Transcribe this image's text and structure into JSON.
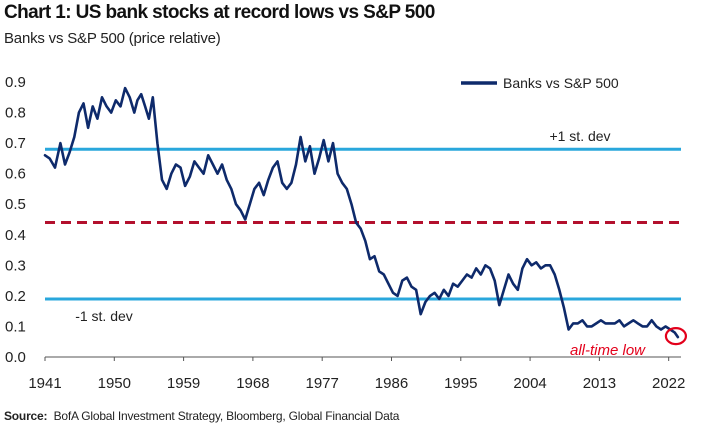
{
  "chart_data": {
    "type": "line",
    "title": "Chart 1: US bank stocks at record lows vs S&P 500",
    "subtitle": "Banks vs S&P 500 (price relative)",
    "xlabel": "",
    "ylabel": "",
    "xlim": [
      1941,
      2023.6
    ],
    "ylim": [
      0.0,
      0.9
    ],
    "x_ticks": [
      "1941",
      "1950",
      "1959",
      "1968",
      "1977",
      "1986",
      "1995",
      "2004",
      "2013",
      "2022"
    ],
    "y_ticks": [
      "0.0",
      "0.1",
      "0.2",
      "0.3",
      "0.4",
      "0.5",
      "0.6",
      "0.7",
      "0.8",
      "0.9"
    ],
    "grid": false,
    "legend": {
      "position": "top-right",
      "entries": [
        "Banks vs S&P 500"
      ]
    },
    "reference_lines": [
      {
        "name": "plus-one-std",
        "value": 0.68,
        "label": "+1 st. dev",
        "color": "#29a7dc",
        "style": "solid"
      },
      {
        "name": "mean",
        "value": 0.44,
        "label": "",
        "color": "#b3102d",
        "style": "dashed"
      },
      {
        "name": "minus-one-std",
        "value": 0.19,
        "label": "-1 st. dev",
        "color": "#29a7dc",
        "style": "solid"
      }
    ],
    "annotations": [
      {
        "label": "all-time low",
        "x": 2023.2,
        "y": 0.065,
        "color": "#e3001b"
      }
    ],
    "series": [
      {
        "name": "Banks vs S&P 500",
        "color": "#0e2a6b",
        "x": [
          1941.0,
          1941.6,
          1942.3,
          1943.0,
          1943.6,
          1944.2,
          1944.8,
          1945.4,
          1946.0,
          1946.6,
          1947.2,
          1947.8,
          1948.4,
          1949.0,
          1949.6,
          1950.2,
          1950.8,
          1951.4,
          1952.0,
          1952.6,
          1953.0,
          1953.5,
          1954.0,
          1954.5,
          1955.0,
          1955.6,
          1956.2,
          1956.8,
          1957.4,
          1958.0,
          1958.6,
          1959.2,
          1959.8,
          1960.4,
          1961.0,
          1961.6,
          1962.2,
          1962.8,
          1963.4,
          1964.0,
          1964.6,
          1965.2,
          1965.8,
          1966.4,
          1967.0,
          1967.6,
          1968.2,
          1968.8,
          1969.4,
          1970.0,
          1970.6,
          1971.2,
          1971.8,
          1972.4,
          1973.0,
          1973.6,
          1974.2,
          1974.8,
          1975.4,
          1976.0,
          1976.6,
          1977.2,
          1977.8,
          1978.4,
          1979.0,
          1979.6,
          1980.2,
          1980.8,
          1981.4,
          1982.0,
          1982.6,
          1983.2,
          1983.8,
          1984.4,
          1985.0,
          1985.6,
          1986.2,
          1986.8,
          1987.4,
          1988.0,
          1988.6,
          1989.2,
          1989.8,
          1990.4,
          1991.0,
          1991.6,
          1992.2,
          1992.8,
          1993.4,
          1994.0,
          1994.6,
          1995.2,
          1995.8,
          1996.4,
          1997.0,
          1997.6,
          1998.2,
          1998.8,
          1999.4,
          2000.0,
          2000.6,
          2001.2,
          2001.8,
          2002.4,
          2003.0,
          2003.6,
          2004.2,
          2004.8,
          2005.4,
          2006.0,
          2006.6,
          2007.2,
          2007.8,
          2008.4,
          2009.0,
          2009.6,
          2010.2,
          2010.8,
          2011.4,
          2012.0,
          2012.6,
          2013.2,
          2013.8,
          2014.4,
          2015.0,
          2015.6,
          2016.2,
          2016.8,
          2017.4,
          2018.0,
          2018.6,
          2019.2,
          2019.8,
          2020.4,
          2021.0,
          2021.6,
          2022.2,
          2022.8,
          2023.2
        ],
        "values": [
          0.66,
          0.65,
          0.62,
          0.7,
          0.63,
          0.67,
          0.72,
          0.8,
          0.83,
          0.75,
          0.82,
          0.78,
          0.85,
          0.82,
          0.8,
          0.84,
          0.82,
          0.88,
          0.85,
          0.8,
          0.84,
          0.86,
          0.82,
          0.78,
          0.85,
          0.7,
          0.58,
          0.55,
          0.6,
          0.63,
          0.62,
          0.56,
          0.59,
          0.64,
          0.62,
          0.6,
          0.66,
          0.63,
          0.6,
          0.63,
          0.58,
          0.55,
          0.5,
          0.48,
          0.45,
          0.5,
          0.55,
          0.57,
          0.53,
          0.58,
          0.62,
          0.64,
          0.57,
          0.55,
          0.57,
          0.63,
          0.72,
          0.64,
          0.69,
          0.6,
          0.65,
          0.71,
          0.64,
          0.7,
          0.6,
          0.57,
          0.55,
          0.5,
          0.44,
          0.42,
          0.38,
          0.32,
          0.33,
          0.28,
          0.27,
          0.24,
          0.21,
          0.2,
          0.25,
          0.26,
          0.23,
          0.22,
          0.14,
          0.18,
          0.2,
          0.21,
          0.19,
          0.22,
          0.2,
          0.24,
          0.23,
          0.25,
          0.27,
          0.26,
          0.29,
          0.27,
          0.3,
          0.29,
          0.25,
          0.17,
          0.22,
          0.27,
          0.24,
          0.22,
          0.29,
          0.32,
          0.3,
          0.31,
          0.29,
          0.3,
          0.3,
          0.27,
          0.22,
          0.16,
          0.09,
          0.11,
          0.11,
          0.12,
          0.1,
          0.1,
          0.11,
          0.12,
          0.11,
          0.11,
          0.11,
          0.12,
          0.1,
          0.11,
          0.12,
          0.11,
          0.1,
          0.1,
          0.12,
          0.1,
          0.09,
          0.1,
          0.09,
          0.08,
          0.065
        ]
      }
    ]
  },
  "source_label": "Source:",
  "source_text": "BofA Global Investment Strategy, Bloomberg, Global Financial Data"
}
